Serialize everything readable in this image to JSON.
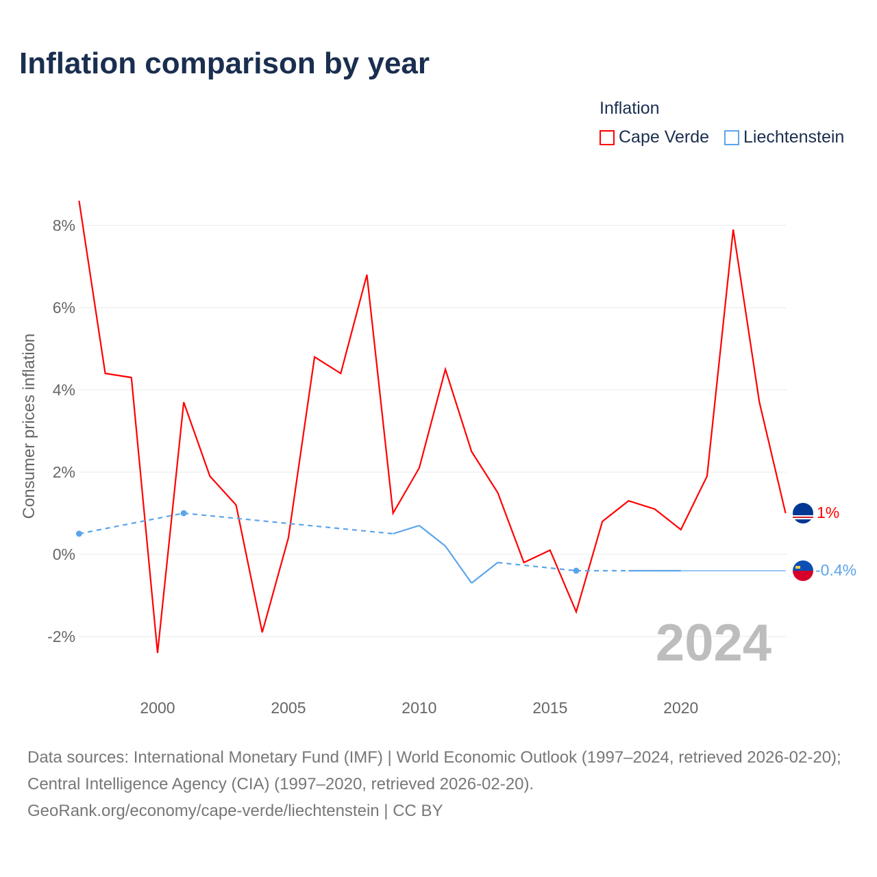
{
  "title": "Inflation comparison by year",
  "legend": {
    "title": "Inflation",
    "items": [
      "Cape Verde",
      "Liechtenstein"
    ]
  },
  "year_watermark": "2024",
  "end_labels": {
    "cape_verde": "1%",
    "liechtenstein": "-0.4%"
  },
  "footer": {
    "line1": "Data sources: International Monetary Fund (IMF) | World Economic Outlook (1997–2024, retrieved 2026-02-20); Central Intelligence Agency (CIA) (1997–2020, retrieved 2026-02-20).",
    "line2": "GeoRank.org/economy/cape-verde/liechtenstein | CC BY"
  },
  "colors": {
    "cape_verde": "#ff0000",
    "liechtenstein": "#5ba4ea"
  },
  "chart_data": {
    "type": "line",
    "title": "Inflation comparison by year",
    "xlabel": "",
    "ylabel": "Consumer prices inflation",
    "xlim": [
      1997,
      2024
    ],
    "ylim": [
      -3,
      8.6
    ],
    "xticks": [
      2000,
      2005,
      2010,
      2015,
      2020
    ],
    "yticks": [
      -2,
      0,
      2,
      4,
      6,
      8
    ],
    "ytick_labels": [
      "-2%",
      "0%",
      "2%",
      "4%",
      "6%",
      "8%"
    ],
    "legend_position": "top-right",
    "series": [
      {
        "name": "Cape Verde",
        "x": [
          1997,
          1998,
          1999,
          2000,
          2001,
          2002,
          2003,
          2004,
          2005,
          2006,
          2007,
          2008,
          2009,
          2010,
          2011,
          2012,
          2013,
          2014,
          2015,
          2016,
          2017,
          2018,
          2019,
          2020,
          2021,
          2022,
          2023,
          2024
        ],
        "values": [
          8.6,
          4.4,
          4.3,
          -2.4,
          3.7,
          1.9,
          1.2,
          -1.9,
          0.4,
          4.8,
          4.4,
          6.8,
          1.0,
          2.1,
          4.5,
          2.5,
          1.5,
          -0.2,
          0.1,
          -1.4,
          0.8,
          1.3,
          1.1,
          0.6,
          1.9,
          7.9,
          3.7,
          1.0
        ]
      },
      {
        "name": "Liechtenstein",
        "x": [
          1997,
          2001,
          2009,
          2010,
          2011,
          2012,
          2013,
          2016,
          2018,
          2019,
          2020,
          2024
        ],
        "values": [
          0.5,
          1.0,
          0.5,
          0.7,
          0.2,
          -0.7,
          -0.2,
          -0.4,
          -0.4,
          -0.4,
          -0.4,
          -0.4
        ]
      }
    ]
  }
}
